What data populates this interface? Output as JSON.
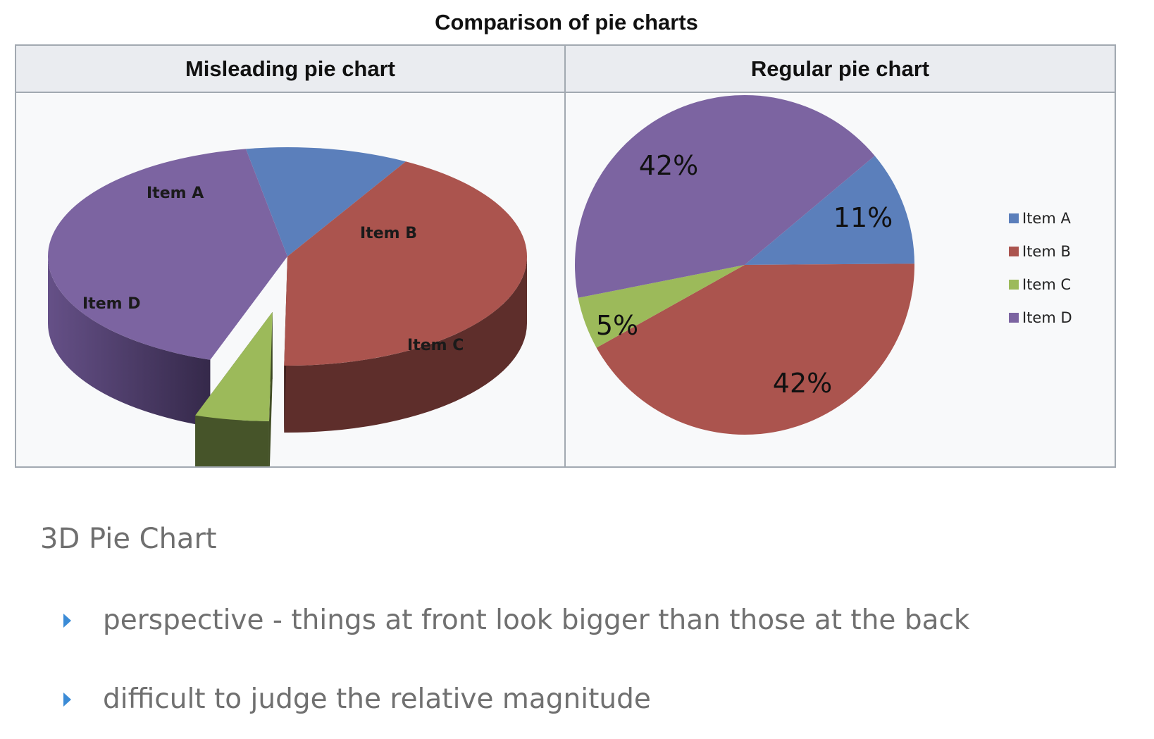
{
  "figure": {
    "title": "Comparison of pie charts",
    "left_header": "Misleading pie chart",
    "right_header": "Regular pie chart"
  },
  "chart_data": [
    {
      "type": "pie",
      "variant": "3d-exploded",
      "title": "Misleading pie chart",
      "labels": [
        "Item A",
        "Item B",
        "Item C",
        "Item D"
      ],
      "values": [
        11,
        42,
        5,
        42
      ],
      "colors": [
        "#5b7fbb",
        "#ab544e",
        "#9cba5a",
        "#7c64a1"
      ]
    },
    {
      "type": "pie",
      "title": "Regular pie chart",
      "labels": [
        "Item A",
        "Item B",
        "Item C",
        "Item D"
      ],
      "values": [
        11,
        42,
        5,
        42
      ],
      "data_labels": [
        "11%",
        "42%",
        "5%",
        "42%"
      ],
      "legend": [
        "Item A",
        "Item B",
        "Item C",
        "Item D"
      ],
      "legend_position": "right",
      "colors": [
        "#5b7fbb",
        "#ab544e",
        "#9cba5a",
        "#7c64a1"
      ]
    }
  ],
  "notes": {
    "heading": "3D Pie Chart",
    "bullets": [
      "perspective - things at front look bigger than those at the back",
      "difficult to judge the relative magnitude"
    ]
  }
}
